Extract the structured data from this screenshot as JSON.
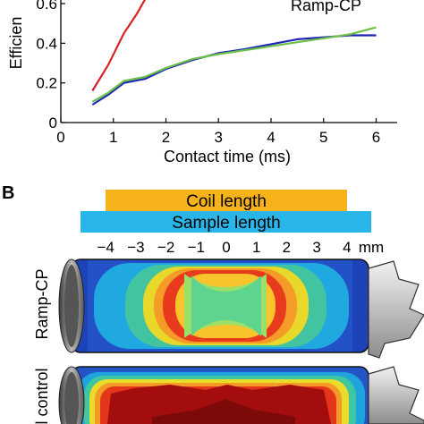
{
  "panel_a": {
    "annotation": "Ramp-CP",
    "chart_data": {
      "type": "line",
      "title": "",
      "xlabel": "Contact time (ms)",
      "ylabel": "Efficien",
      "xlim": [
        0,
        6.4
      ],
      "ylim": [
        0,
        0.6
      ],
      "x_ticks": [
        "0",
        "1",
        "2",
        "3",
        "4",
        "5",
        "6"
      ],
      "y_ticks": [
        "0",
        "0.2",
        "0.4",
        "0.6"
      ],
      "grid": false,
      "series": [
        {
          "color": "#d62222",
          "x": [
            0.6,
            0.9,
            1.2,
            1.45,
            1.6
          ],
          "y": [
            0.16,
            0.29,
            0.45,
            0.55,
            0.62
          ]
        },
        {
          "color": "#1f24b4",
          "x": [
            0.6,
            0.9,
            1.2,
            1.6,
            2.0,
            2.5,
            3.0,
            3.5,
            4.0,
            4.5,
            5.0,
            5.5,
            6.0
          ],
          "y": [
            0.09,
            0.14,
            0.2,
            0.22,
            0.27,
            0.315,
            0.35,
            0.37,
            0.395,
            0.42,
            0.43,
            0.44,
            0.44
          ]
        },
        {
          "color": "#6cc04a",
          "x": [
            0.6,
            0.9,
            1.2,
            1.6,
            2.0,
            2.5,
            3.0,
            3.5,
            4.0,
            4.5,
            5.0,
            5.5,
            6.0
          ],
          "y": [
            0.105,
            0.15,
            0.21,
            0.23,
            0.275,
            0.32,
            0.345,
            0.365,
            0.385,
            0.405,
            0.425,
            0.445,
            0.48
          ]
        }
      ]
    }
  },
  "panel_b": {
    "letter": "B",
    "coil_label": "Coil length",
    "sample_label": "Sample length",
    "coil_color": "#f5b21b",
    "sample_color": "#29b5e8",
    "mm_ticks": [
      "−4",
      "−3",
      "−2",
      "−1",
      "0",
      "1",
      "2",
      "3",
      "4"
    ],
    "mm_unit": "mm",
    "row_labels": [
      "Ramp-CP",
      "al control"
    ]
  }
}
